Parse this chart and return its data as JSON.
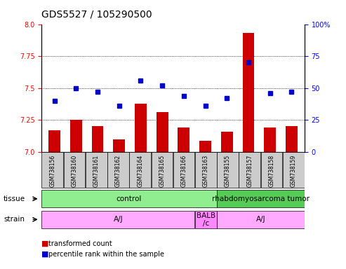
{
  "title": "GDS5527 / 105290500",
  "samples": [
    "GSM738156",
    "GSM738160",
    "GSM738161",
    "GSM738162",
    "GSM738164",
    "GSM738165",
    "GSM738166",
    "GSM738163",
    "GSM738155",
    "GSM738157",
    "GSM738158",
    "GSM738159"
  ],
  "transformed_count": [
    7.17,
    7.25,
    7.2,
    7.1,
    7.38,
    7.31,
    7.19,
    7.09,
    7.16,
    7.93,
    7.19,
    7.2
  ],
  "percentile_rank": [
    40,
    50,
    47,
    36,
    56,
    52,
    44,
    36,
    42,
    70,
    46,
    47
  ],
  "ylim_left": [
    7.0,
    8.0
  ],
  "ylim_right": [
    0,
    100
  ],
  "yticks_left": [
    7.0,
    7.25,
    7.5,
    7.75,
    8.0
  ],
  "yticks_right": [
    0,
    25,
    50,
    75,
    100
  ],
  "tissue_labels": [
    {
      "text": "control",
      "start": 0,
      "end": 8,
      "color": "#90EE90"
    },
    {
      "text": "rhabdomyosarcoma tumor",
      "start": 8,
      "end": 12,
      "color": "#55CC55"
    }
  ],
  "strain_labels": [
    {
      "text": "A/J",
      "start": 0,
      "end": 7,
      "color": "#FFAAFF"
    },
    {
      "text": "BALB\n/c",
      "start": 7,
      "end": 8,
      "color": "#FF88FF"
    },
    {
      "text": "A/J",
      "start": 8,
      "end": 12,
      "color": "#FFAAFF"
    }
  ],
  "bar_color": "#CC0000",
  "dot_color": "#0000CC",
  "title_fontsize": 10,
  "tick_fontsize": 7,
  "sample_fontsize": 5.5,
  "annotation_fontsize": 7.5,
  "legend_fontsize": 7
}
